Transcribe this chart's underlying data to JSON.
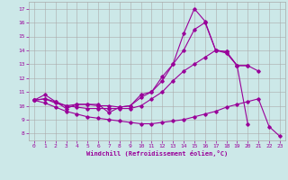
{
  "xlabel": "Windchill (Refroidissement éolien,°C)",
  "background_color": "#cce8e8",
  "line_color": "#990099",
  "grid_color": "#aaaaaa",
  "xlim": [
    -0.5,
    23.5
  ],
  "ylim": [
    7.5,
    17.5
  ],
  "yticks": [
    8,
    9,
    10,
    11,
    12,
    13,
    14,
    15,
    16,
    17
  ],
  "xticks": [
    0,
    1,
    2,
    3,
    4,
    5,
    6,
    7,
    8,
    9,
    10,
    11,
    12,
    13,
    14,
    15,
    16,
    17,
    18,
    19,
    20,
    21,
    22,
    23
  ],
  "curves": [
    {
      "x": [
        0,
        1,
        2,
        3,
        4,
        5,
        6,
        7,
        8,
        9,
        10,
        11,
        12,
        13,
        14,
        15,
        16,
        17,
        18,
        19,
        20
      ],
      "y": [
        10.4,
        10.8,
        10.3,
        9.8,
        10.1,
        10.1,
        10.1,
        9.5,
        9.9,
        10.0,
        10.8,
        11.0,
        11.8,
        13.0,
        15.2,
        17.0,
        16.1,
        14.0,
        13.9,
        12.9,
        8.7
      ]
    },
    {
      "x": [
        0,
        1,
        2,
        3,
        4,
        5,
        6,
        7,
        8,
        9,
        10,
        11,
        12,
        13,
        14,
        15,
        16,
        17,
        18,
        19,
        20
      ],
      "y": [
        10.4,
        10.5,
        10.2,
        10.0,
        10.1,
        10.1,
        10.0,
        10.0,
        9.9,
        10.0,
        10.6,
        11.0,
        12.1,
        13.0,
        14.0,
        15.5,
        16.0,
        14.0,
        13.9,
        12.9,
        12.9
      ]
    },
    {
      "x": [
        0,
        1,
        2,
        3,
        4,
        5,
        6,
        7,
        8,
        9,
        10,
        11,
        12,
        13,
        14,
        15,
        16,
        17,
        18,
        19,
        20,
        21
      ],
      "y": [
        10.4,
        10.5,
        10.3,
        10.0,
        9.9,
        9.8,
        9.8,
        9.8,
        9.8,
        9.8,
        10.0,
        10.5,
        11.0,
        11.8,
        12.5,
        13.0,
        13.5,
        14.0,
        13.8,
        12.9,
        12.9,
        12.5
      ]
    },
    {
      "x": [
        0,
        1,
        2,
        3,
        4,
        5,
        6,
        7,
        8,
        9,
        10,
        11,
        12,
        13,
        14,
        15,
        16,
        17,
        18,
        19,
        20,
        21,
        22,
        23
      ],
      "y": [
        10.4,
        10.2,
        9.9,
        9.6,
        9.4,
        9.2,
        9.1,
        9.0,
        8.9,
        8.8,
        8.7,
        8.7,
        8.8,
        8.9,
        9.0,
        9.2,
        9.4,
        9.6,
        9.9,
        10.1,
        10.3,
        10.5,
        8.5,
        7.8
      ]
    }
  ]
}
